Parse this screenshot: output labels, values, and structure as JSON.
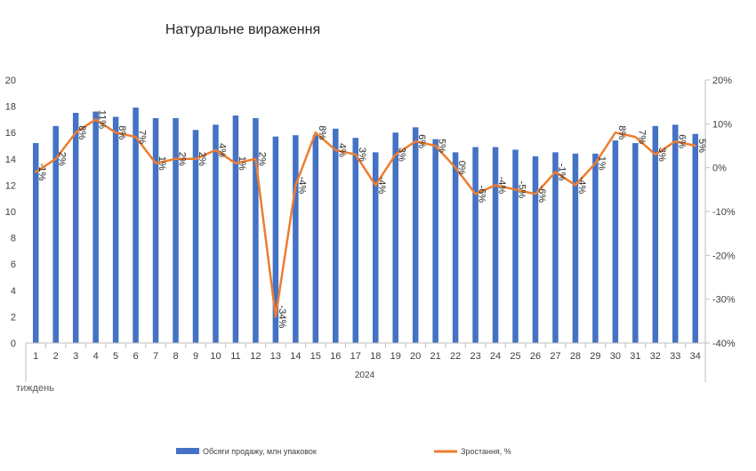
{
  "chart_data": {
    "type": "bar",
    "title": "Натуральне вираження",
    "xlabel": "тиждень",
    "group_label": "2024",
    "categories": [
      "1",
      "2",
      "3",
      "4",
      "5",
      "6",
      "7",
      "8",
      "9",
      "10",
      "11",
      "12",
      "13",
      "14",
      "15",
      "16",
      "17",
      "18",
      "19",
      "20",
      "21",
      "22",
      "23",
      "24",
      "25",
      "26",
      "27",
      "28",
      "29",
      "30",
      "31",
      "32",
      "33",
      "34"
    ],
    "series": [
      {
        "name": "Обсяги продажу, млн упаковок",
        "type": "bar",
        "axis": "left",
        "color": "#4472C4",
        "values": [
          15.2,
          16.5,
          17.5,
          17.6,
          17.2,
          17.9,
          17.1,
          17.1,
          16.2,
          16.6,
          17.3,
          17.1,
          15.7,
          15.8,
          15.8,
          16.3,
          15.6,
          14.5,
          16.0,
          16.4,
          15.5,
          14.5,
          14.9,
          14.9,
          14.7,
          14.2,
          14.5,
          14.4,
          14.4,
          15.4,
          15.2,
          16.5,
          16.6,
          15.9
        ]
      },
      {
        "name": "Зростання, %",
        "type": "line",
        "axis": "right",
        "color": "#ED7D31",
        "values": [
          -1,
          2,
          8,
          11,
          8,
          7,
          1,
          2,
          2,
          4,
          1,
          2,
          -34,
          -4,
          8,
          4,
          3,
          -4,
          3,
          6,
          5,
          0,
          -6,
          -4,
          -5,
          -6,
          -1,
          -4,
          1,
          8,
          7,
          3,
          6,
          5
        ],
        "labels": [
          "-1%",
          "2%",
          "8%",
          "11%",
          "8%",
          "7%",
          "1%",
          "2%",
          "2%",
          "4%",
          "1%",
          "2%",
          "-34%",
          "-4%",
          "8%",
          "4%",
          "3%",
          "-4%",
          "3%",
          "6%",
          "5%",
          "0%",
          "-6%",
          "-4%",
          "-5%",
          "-6%",
          "-1%",
          "-4%",
          "1%",
          "8%",
          "7%",
          "3%",
          "6%",
          "5%"
        ]
      }
    ],
    "y_left": {
      "min": 0,
      "max": 20,
      "step": 2,
      "ticks": [
        "0",
        "2",
        "4",
        "6",
        "8",
        "10",
        "12",
        "14",
        "16",
        "18",
        "20"
      ]
    },
    "y_right": {
      "min": -40,
      "max": 20,
      "step": 10,
      "ticks": [
        "-40%",
        "-30%",
        "-20%",
        "-10%",
        "0%",
        "10%",
        "20%"
      ]
    },
    "grid": false,
    "legend_position": "bottom"
  }
}
